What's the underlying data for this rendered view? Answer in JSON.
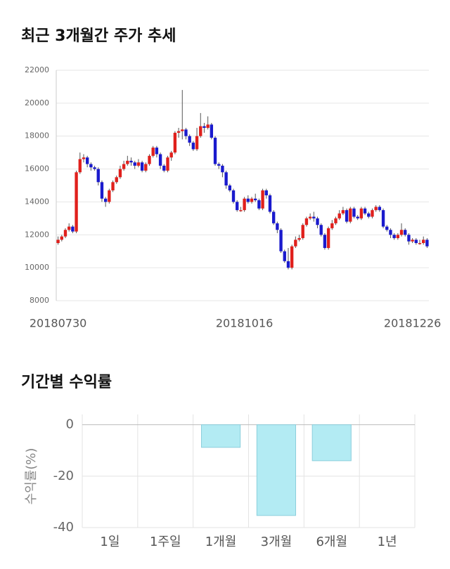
{
  "chart_data": [
    {
      "type": "candlestick",
      "title": "최근 3개월간 주가 추세",
      "categories": [
        "20180730",
        null,
        null,
        null,
        null,
        null,
        null,
        null,
        null,
        null,
        null,
        null,
        null,
        null,
        null,
        null,
        null,
        null,
        null,
        null,
        null,
        null,
        null,
        null,
        null,
        null,
        null,
        null,
        null,
        null,
        null,
        null,
        null,
        null,
        null,
        null,
        null,
        null,
        null,
        null,
        null,
        null,
        null,
        null,
        null,
        null,
        null,
        null,
        null,
        null,
        null,
        "20181016",
        null,
        null,
        null,
        null,
        null,
        null,
        null,
        null,
        null,
        null,
        null,
        null,
        null,
        null,
        null,
        null,
        null,
        null,
        null,
        null,
        null,
        null,
        null,
        null,
        null,
        null,
        null,
        null,
        null,
        null,
        null,
        null,
        null,
        null,
        null,
        null,
        null,
        null,
        null,
        null,
        null,
        null,
        null,
        null,
        null,
        "20181226",
        null,
        null,
        null,
        null
      ],
      "open": [
        11500,
        11700,
        11900,
        12300,
        12500,
        12200,
        15800,
        16600,
        16700,
        16300,
        16100,
        16000,
        15200,
        14200,
        14000,
        14700,
        15200,
        15500,
        16000,
        16300,
        16500,
        16400,
        16200,
        16400,
        15900,
        16300,
        16800,
        17300,
        16900,
        16200,
        15900,
        16700,
        17000,
        18200,
        18300,
        18400,
        18000,
        17600,
        17200,
        18000,
        18600,
        18500,
        18700,
        17900,
        16300,
        16200,
        15800,
        15000,
        14700,
        14000,
        13500,
        13500,
        14200,
        14000,
        14200,
        14100,
        13600,
        14700,
        14400,
        13400,
        12700,
        12300,
        11000,
        10400,
        10000,
        11300,
        11700,
        11800,
        12600,
        13000,
        13100,
        13000,
        12600,
        12000,
        11200,
        12400,
        12700,
        13000,
        13300,
        13500,
        12800,
        13600,
        13100,
        13000,
        13600,
        13300,
        13100,
        13500,
        13700,
        13500,
        12500,
        12300,
        12000,
        11800,
        12000,
        12300,
        12000,
        11600,
        11700,
        11500,
        11500,
        11700
      ],
      "high": [
        11900,
        12000,
        12400,
        12700,
        12600,
        15900,
        17000,
        16900,
        16800,
        16400,
        16200,
        16100,
        15300,
        14300,
        14800,
        15300,
        15600,
        16200,
        16500,
        16800,
        16700,
        16500,
        16600,
        16500,
        16400,
        16900,
        17400,
        17400,
        17000,
        16300,
        16800,
        17100,
        18300,
        18500,
        20800,
        18500,
        18100,
        17700,
        18500,
        19400,
        18800,
        19200,
        18800,
        18000,
        16400,
        16300,
        15900,
        15100,
        14800,
        14100,
        13700,
        14300,
        14400,
        14300,
        14500,
        14200,
        14800,
        14800,
        14500,
        13500,
        12800,
        12400,
        11100,
        11200,
        11400,
        11900,
        12000,
        12700,
        13100,
        13300,
        13400,
        13100,
        12700,
        12100,
        12500,
        12900,
        13100,
        13500,
        13700,
        13600,
        13700,
        13700,
        13200,
        13700,
        13700,
        13400,
        13600,
        13800,
        13800,
        13600,
        12600,
        12400,
        12100,
        12100,
        12700,
        12400,
        12100,
        11800,
        11800,
        11700,
        11900,
        11800
      ],
      "low": [
        11400,
        11600,
        11800,
        12200,
        12100,
        12100,
        15700,
        16400,
        16100,
        15900,
        15900,
        15000,
        14000,
        13700,
        13900,
        14600,
        15100,
        15400,
        15900,
        16200,
        16200,
        16000,
        16100,
        15800,
        15800,
        16200,
        16700,
        16700,
        16000,
        15800,
        15800,
        16500,
        16900,
        17900,
        17800,
        17800,
        17400,
        17100,
        17100,
        17900,
        18200,
        18400,
        17800,
        16200,
        16000,
        15500,
        14800,
        14600,
        13900,
        13400,
        13400,
        13400,
        13900,
        13900,
        14000,
        13500,
        13500,
        14200,
        13300,
        12600,
        12100,
        10900,
        10300,
        9900,
        9900,
        11200,
        11600,
        11700,
        12500,
        12900,
        12800,
        12400,
        11900,
        11100,
        11100,
        12300,
        12600,
        12900,
        13200,
        12700,
        12700,
        13000,
        12900,
        12900,
        13200,
        13000,
        13000,
        13400,
        13400,
        12400,
        12200,
        11800,
        11700,
        11700,
        11900,
        11900,
        11400,
        11500,
        11400,
        11400,
        11400,
        11200
      ],
      "close": [
        11700,
        11900,
        12300,
        12500,
        12200,
        15800,
        16600,
        16700,
        16300,
        16100,
        16000,
        15200,
        14200,
        14000,
        14700,
        15200,
        15500,
        16000,
        16300,
        16500,
        16400,
        16200,
        16400,
        15900,
        16300,
        16800,
        17300,
        16900,
        16200,
        15900,
        16700,
        17000,
        18200,
        18300,
        18400,
        18000,
        17600,
        17200,
        18000,
        18600,
        18500,
        18700,
        17900,
        16300,
        16200,
        15800,
        15000,
        14700,
        14000,
        13500,
        13500,
        14200,
        14000,
        14200,
        14100,
        13600,
        14700,
        14400,
        13400,
        12700,
        12300,
        11000,
        10400,
        10000,
        11300,
        11700,
        11800,
        12600,
        13000,
        13100,
        13000,
        12600,
        12000,
        11200,
        12400,
        12700,
        13000,
        13300,
        13500,
        12800,
        13600,
        13100,
        13000,
        13600,
        13300,
        13100,
        13500,
        13700,
        13500,
        12500,
        12300,
        12000,
        11800,
        12000,
        12300,
        12000,
        11600,
        11700,
        11500,
        11500,
        11700,
        11300
      ],
      "up_color": "#e0201c",
      "down_color": "#1a1acd",
      "ylim": [
        8000,
        22000
      ],
      "yticks": [
        8000,
        10000,
        12000,
        14000,
        16000,
        18000,
        20000,
        22000
      ],
      "grid": true
    },
    {
      "type": "bar",
      "title": "기간별 수익률",
      "y_label": "수익률(%)",
      "categories": [
        "1일",
        "1주일",
        "1개월",
        "3개월",
        "6개월",
        "1년"
      ],
      "values": [
        null,
        null,
        -8.8,
        -35.3,
        -14.0,
        null
      ],
      "color": "#b3ebf3",
      "edge_color": "#8ccfdc",
      "ylim": [
        -40,
        4
      ],
      "yticks": [
        -40,
        -20,
        0
      ],
      "grid": true
    }
  ]
}
